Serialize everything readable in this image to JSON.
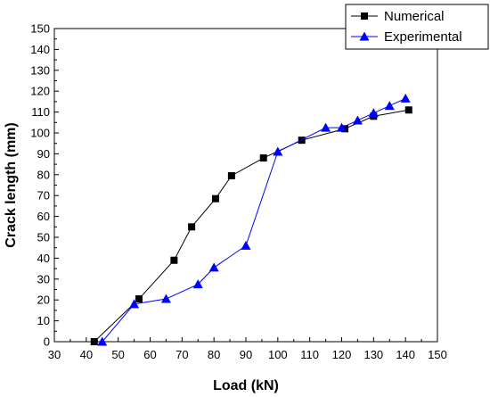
{
  "chart_data": {
    "type": "line",
    "xlabel": "Load (kN)",
    "ylabel": "Crack length (mm)",
    "xlim": [
      30,
      150
    ],
    "ylim": [
      0,
      150
    ],
    "xticks": [
      30,
      40,
      50,
      60,
      70,
      80,
      90,
      100,
      110,
      120,
      130,
      140,
      150
    ],
    "yticks": [
      0,
      10,
      20,
      30,
      40,
      50,
      60,
      70,
      80,
      90,
      100,
      110,
      120,
      130,
      140,
      150
    ],
    "legend_position": "top-right",
    "grid": false,
    "series": [
      {
        "name": "Numerical",
        "marker": "square",
        "color": "#000000",
        "x": [
          42.5,
          56.5,
          67.5,
          73,
          80.5,
          85.5,
          95.5,
          107.5,
          121,
          130,
          141
        ],
        "y": [
          0,
          20.5,
          39,
          55,
          68.5,
          79.5,
          88,
          96.5,
          102,
          108,
          111
        ]
      },
      {
        "name": "Experimental",
        "marker": "triangle",
        "color": "#0000ff",
        "x": [
          45,
          55,
          65,
          75,
          80,
          90,
          100,
          115,
          120,
          125,
          130,
          135,
          140
        ],
        "y": [
          0,
          18,
          20.5,
          27.5,
          35.5,
          46,
          91,
          102.5,
          102.5,
          106,
          109.5,
          113,
          116.5
        ]
      }
    ]
  }
}
